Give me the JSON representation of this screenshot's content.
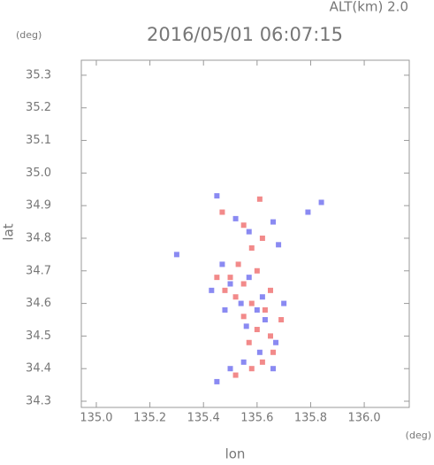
{
  "chart_data": {
    "type": "scatter",
    "title": "2016/05/01 06:07:15",
    "annotations": [
      "ALT(km) 2.0",
      "(deg)",
      "(deg)"
    ],
    "xlabel": "lon",
    "ylabel": "lat",
    "xlim": [
      134.944,
      136.168
    ],
    "ylim": [
      34.281,
      35.346
    ],
    "xticks": [
      {
        "value": 135.0,
        "label": "135.0"
      },
      135.2,
      135.4,
      135.6,
      135.8,
      {
        "value": 136.0,
        "label": "136.0"
      }
    ],
    "yticks": [
      34.3,
      34.4,
      34.5,
      34.6,
      34.7,
      34.8,
      34.9,
      {
        "value": 35.0,
        "label": "35.0"
      },
      35.1,
      35.2,
      35.3
    ],
    "series": [
      {
        "color": "#f28a8a",
        "x": [
          135.47,
          135.61,
          135.55,
          135.62,
          135.58,
          135.5,
          135.55,
          135.6,
          135.52,
          135.58,
          135.63,
          135.55,
          135.6,
          135.57,
          135.65,
          135.62,
          135.58,
          135.52,
          135.66,
          135.48,
          135.53,
          135.65,
          135.69,
          135.45
        ],
        "values": [
          34.88,
          34.92,
          34.84,
          34.8,
          34.77,
          34.68,
          34.66,
          34.7,
          34.62,
          34.6,
          34.58,
          34.56,
          34.52,
          34.48,
          34.5,
          34.42,
          34.4,
          34.38,
          34.45,
          34.64,
          34.72,
          34.64,
          34.55,
          34.68
        ]
      },
      {
        "color": "#8a8af2",
        "x": [
          135.45,
          135.52,
          135.57,
          135.66,
          135.68,
          135.79,
          135.84,
          135.3,
          135.47,
          135.5,
          135.57,
          135.62,
          135.54,
          135.6,
          135.48,
          135.56,
          135.63,
          135.67,
          135.61,
          135.55,
          135.5,
          135.45,
          135.66,
          135.7,
          135.43
        ],
        "values": [
          34.93,
          34.86,
          34.82,
          34.85,
          34.78,
          34.88,
          34.91,
          34.75,
          34.72,
          34.66,
          34.68,
          34.62,
          34.6,
          34.58,
          34.58,
          34.53,
          34.55,
          34.48,
          34.45,
          34.42,
          34.4,
          34.36,
          34.4,
          34.6,
          34.64
        ]
      }
    ]
  }
}
